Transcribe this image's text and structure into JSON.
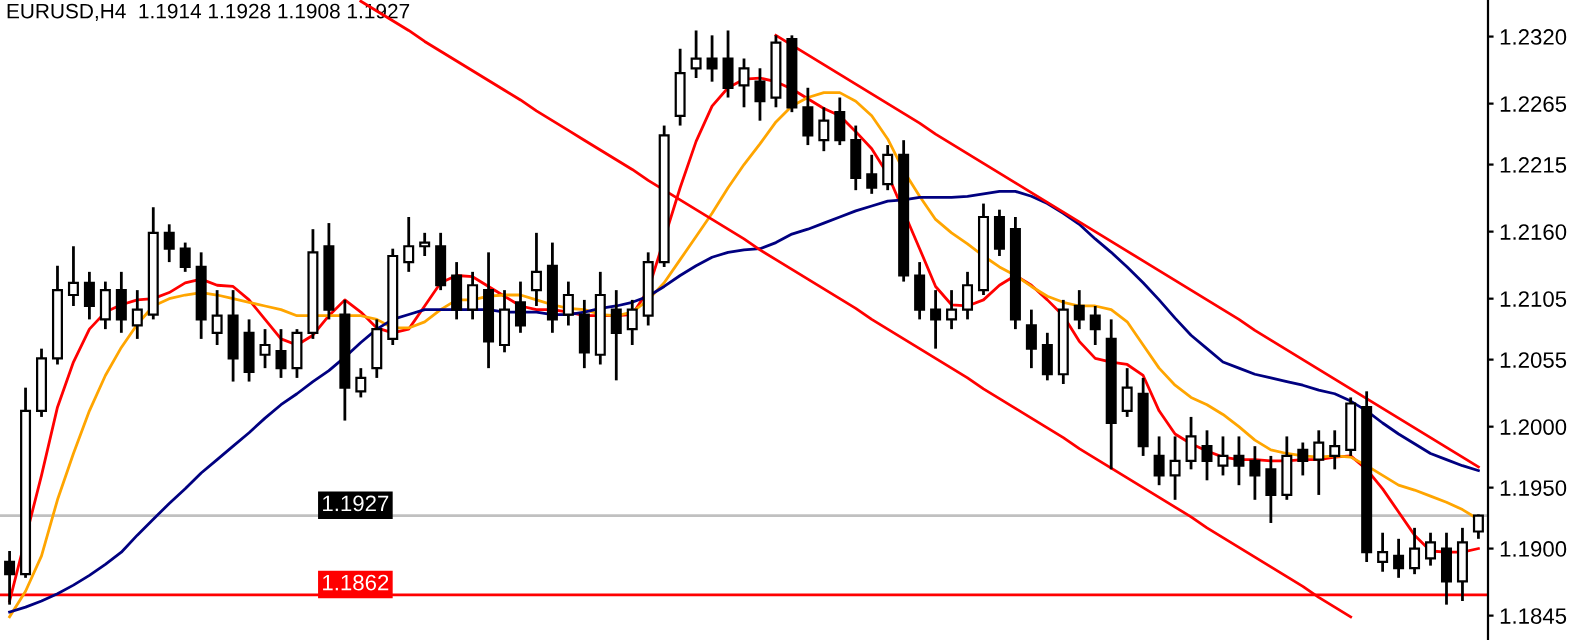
{
  "chart_data": {
    "type": "candlestick",
    "title": "EURUSD,H4  1.1914 1.1928 1.1908 1.1927",
    "categories": [
      null,
      null,
      null,
      null,
      null,
      null,
      null,
      null,
      null,
      null,
      null,
      null,
      null,
      null,
      null,
      null,
      null,
      null,
      null,
      null,
      null,
      null,
      null,
      null,
      null,
      null,
      null,
      null,
      null,
      null,
      null,
      null,
      null,
      null,
      null,
      null,
      null,
      null,
      null,
      null,
      null,
      null,
      null,
      null,
      null,
      null,
      null,
      null,
      null,
      null,
      null,
      null,
      null,
      null,
      null,
      null,
      null,
      null,
      null,
      null,
      null,
      null,
      null,
      null,
      null,
      null,
      null,
      null,
      null,
      null,
      null,
      null,
      null,
      null,
      null,
      null,
      null,
      null,
      null,
      null,
      null,
      null,
      null,
      null,
      null,
      null,
      null,
      null,
      null,
      null,
      null,
      null,
      null
    ],
    "color": "#000000",
    "ohlc": [
      [
        1.1889,
        1.1898,
        1.1854,
        1.1879
      ],
      [
        1.1879,
        1.2032,
        1.1876,
        1.2013
      ],
      [
        1.2013,
        1.2064,
        1.2008,
        1.2056
      ],
      [
        1.2056,
        1.2132,
        1.2051,
        1.2112
      ],
      [
        1.2108,
        1.2148,
        1.2099,
        1.2118
      ],
      [
        1.2118,
        1.2127,
        1.2088,
        1.2099
      ],
      [
        1.2088,
        1.2119,
        1.208,
        1.2112
      ],
      [
        1.2112,
        1.2127,
        1.2077,
        1.2088
      ],
      [
        1.2083,
        1.2112,
        1.2072,
        1.2096
      ],
      [
        1.2092,
        1.218,
        1.2088,
        1.2159
      ],
      [
        1.2159,
        1.2166,
        1.2135,
        1.2146
      ],
      [
        1.2146,
        1.2151,
        1.2127,
        1.2131
      ],
      [
        1.2131,
        1.2143,
        1.2072,
        1.2088
      ],
      [
        1.2077,
        1.2112,
        1.2067,
        1.2091
      ],
      [
        1.2091,
        1.2112,
        1.2037,
        1.2056
      ],
      [
        1.2077,
        1.2088,
        1.2037,
        1.2045
      ],
      [
        1.2059,
        1.208,
        1.2048,
        1.2067
      ],
      [
        1.2062,
        1.208,
        1.204,
        1.2048
      ],
      [
        1.2048,
        1.208,
        1.204,
        1.2077
      ],
      [
        1.2077,
        1.2162,
        1.2072,
        1.2143
      ],
      [
        1.2148,
        1.2167,
        1.2088,
        1.2096
      ],
      [
        1.2092,
        1.2104,
        1.2005,
        1.2032
      ],
      [
        1.2029,
        1.2048,
        1.2024,
        1.204
      ],
      [
        1.2048,
        1.2088,
        1.204,
        1.208
      ],
      [
        1.2072,
        1.2146,
        1.2067,
        1.214
      ],
      [
        1.2135,
        1.2172,
        1.2127,
        1.2148
      ],
      [
        1.2148,
        1.2159,
        1.214,
        1.2151
      ],
      [
        1.2148,
        1.2159,
        1.2112,
        1.2116
      ],
      [
        1.2124,
        1.2135,
        1.2088,
        1.2096
      ],
      [
        1.2096,
        1.2127,
        1.2088,
        1.2116
      ],
      [
        1.2112,
        1.2143,
        1.2048,
        1.207
      ],
      [
        1.2067,
        1.2112,
        1.2061,
        1.2096
      ],
      [
        1.2102,
        1.2119,
        1.2077,
        1.2083
      ],
      [
        1.2112,
        1.2159,
        1.2099,
        1.2127
      ],
      [
        1.2132,
        1.2151,
        1.2077,
        1.2088
      ],
      [
        1.2092,
        1.2119,
        1.2083,
        1.2108
      ],
      [
        1.2092,
        1.2104,
        1.2048,
        1.2061
      ],
      [
        1.2059,
        1.2127,
        1.2051,
        1.2108
      ],
      [
        1.2096,
        1.2112,
        1.2038,
        1.2077
      ],
      [
        1.208,
        1.2104,
        1.2067,
        1.2096
      ],
      [
        1.2091,
        1.2143,
        1.2083,
        1.2135
      ],
      [
        1.2135,
        1.2247,
        1.2131,
        1.2239
      ],
      [
        1.2255,
        1.231,
        1.2247,
        1.229
      ],
      [
        1.2294,
        1.2325,
        1.2286,
        1.2302
      ],
      [
        1.2302,
        1.2321,
        1.2283,
        1.2294
      ],
      [
        1.2302,
        1.2325,
        1.227,
        1.2278
      ],
      [
        1.228,
        1.2302,
        1.2262,
        1.2294
      ],
      [
        1.2283,
        1.2294,
        1.2251,
        1.2267
      ],
      [
        1.227,
        1.2321,
        1.2262,
        1.2315
      ],
      [
        1.2318,
        1.2321,
        1.2258,
        1.2262
      ],
      [
        1.2262,
        1.2278,
        1.2231,
        1.2239
      ],
      [
        1.2235,
        1.2262,
        1.2226,
        1.2251
      ],
      [
        1.2258,
        1.227,
        1.2231,
        1.2235
      ],
      [
        1.2235,
        1.2247,
        1.2194,
        1.2204
      ],
      [
        1.2207,
        1.2223,
        1.2191,
        1.2196
      ],
      [
        1.2199,
        1.2231,
        1.2194,
        1.2223
      ],
      [
        1.2223,
        1.2235,
        1.2119,
        1.2124
      ],
      [
        1.2124,
        1.2135,
        1.2088,
        1.2096
      ],
      [
        1.2096,
        1.2112,
        1.2064,
        1.2088
      ],
      [
        1.2088,
        1.2112,
        1.208,
        1.2096
      ],
      [
        1.2096,
        1.2127,
        1.2088,
        1.2116
      ],
      [
        1.2112,
        1.2183,
        1.2108,
        1.2172
      ],
      [
        1.2172,
        1.2178,
        1.214,
        1.2146
      ],
      [
        1.2162,
        1.2172,
        1.208,
        1.2088
      ],
      [
        1.2083,
        1.2096,
        1.2048,
        1.2064
      ],
      [
        1.2067,
        1.2077,
        1.2038,
        1.2043
      ],
      [
        1.2043,
        1.2104,
        1.2035,
        1.2096
      ],
      [
        1.2099,
        1.2112,
        1.208,
        1.2088
      ],
      [
        1.2091,
        1.2099,
        1.2067,
        1.208
      ],
      [
        1.2072,
        1.2088,
        1.1965,
        1.2003
      ],
      [
        1.2013,
        1.2048,
        1.2008,
        1.2032
      ],
      [
        1.2027,
        1.204,
        1.1976,
        1.1984
      ],
      [
        1.1976,
        1.1992,
        1.1952,
        1.196
      ],
      [
        1.196,
        1.1992,
        1.194,
        1.1972
      ],
      [
        1.1972,
        1.2008,
        1.1965,
        1.1992
      ],
      [
        1.1984,
        1.1997,
        1.1956,
        1.1972
      ],
      [
        1.1968,
        1.1992,
        1.196,
        1.1976
      ],
      [
        1.1976,
        1.1992,
        1.1952,
        1.1968
      ],
      [
        1.1972,
        1.1984,
        1.194,
        1.196
      ],
      [
        1.1965,
        1.1976,
        1.1921,
        1.1944
      ],
      [
        1.1944,
        1.1992,
        1.194,
        1.1976
      ],
      [
        1.1981,
        1.1987,
        1.196,
        1.1972
      ],
      [
        1.1973,
        1.1997,
        1.1944,
        1.1987
      ],
      [
        1.1976,
        1.1997,
        1.1965,
        1.1984
      ],
      [
        1.1981,
        1.2024,
        1.1976,
        1.2019
      ],
      [
        1.2016,
        1.2029,
        1.1889,
        1.1897
      ],
      [
        1.1889,
        1.1913,
        1.1881,
        1.1897
      ],
      [
        1.1894,
        1.1908,
        1.1876,
        1.1884
      ],
      [
        1.1884,
        1.1917,
        1.1879,
        1.19
      ],
      [
        1.1892,
        1.1913,
        1.1886,
        1.1905
      ],
      [
        1.19,
        1.1913,
        1.1854,
        1.1873
      ],
      [
        1.1873,
        1.1917,
        1.1857,
        1.1905
      ],
      [
        1.1914,
        1.1928,
        1.1908,
        1.1927
      ]
    ],
    "series": [
      {
        "type": "line",
        "color": "#ff0000",
        "values": [
          1.1857,
          null,
          1.196,
          1.2016,
          1.2053,
          1.208,
          1.2094,
          1.21,
          1.2104,
          1.2105,
          1.211,
          1.2118,
          1.2121,
          1.2116,
          1.2115,
          1.2104,
          1.2088,
          1.2072,
          1.2067,
          1.2075,
          1.2091,
          1.2104,
          1.2094,
          1.2081,
          1.2077,
          1.208,
          1.2099,
          1.2118,
          1.2124,
          1.2123,
          1.2115,
          1.2107,
          1.2099,
          1.2096,
          1.2096,
          1.2094,
          1.2091,
          1.2091,
          1.2091,
          1.2092,
          1.2112,
          null,
          1.2196,
          1.2234,
          1.2263,
          1.2278,
          1.2285,
          1.2286,
          1.2283,
          1.2277,
          1.2269,
          1.2261,
          1.2255,
          1.2242,
          1.2228,
          1.2207,
          null,
          1.2146,
          1.2115,
          1.21,
          1.2099,
          1.2104,
          1.2116,
          1.2124,
          1.2116,
          1.2104,
          1.2091,
          1.207,
          1.2056,
          1.2053,
          1.2051,
          1.2042,
          1.2013,
          1.1994,
          1.1986,
          1.198,
          1.1975,
          1.1973,
          1.1973,
          1.1972,
          1.1972,
          1.1973,
          1.1973,
          1.1975,
          1.1976,
          1.1965,
          1.1949,
          1.193,
          1.1911,
          1.1898,
          1.1897,
          1.1897,
          1.19
        ]
      },
      {
        "type": "line",
        "color": "#ffa500",
        "values": [
          1.1844,
          1.1865,
          1.1894,
          1.194,
          1.1978,
          1.2013,
          1.2042,
          1.2065,
          1.2084,
          1.2099,
          1.2105,
          1.2108,
          1.211,
          1.2108,
          1.2105,
          1.2102,
          1.2099,
          1.2096,
          1.2091,
          1.2091,
          1.2091,
          1.2091,
          1.2091,
          1.2088,
          1.2081,
          1.2081,
          1.2086,
          1.2096,
          1.2104,
          1.2104,
          1.2107,
          1.2108,
          1.2108,
          1.2104,
          1.21,
          1.2097,
          1.2096,
          1.2092,
          1.2091,
          1.2094,
          1.2104,
          1.2118,
          1.2137,
          1.2156,
          1.2175,
          1.2196,
          1.2215,
          1.2232,
          1.225,
          1.2263,
          1.227,
          1.2274,
          1.2274,
          1.2267,
          1.2255,
          1.2236,
          1.221,
          1.2189,
          1.217,
          1.2159,
          1.215,
          1.214,
          1.2131,
          1.2124,
          1.2115,
          1.2107,
          1.2102,
          1.2099,
          1.2099,
          1.2096,
          1.2086,
          1.2067,
          1.2048,
          1.2034,
          1.2024,
          1.2018,
          1.201,
          1.2,
          1.1989,
          1.1981,
          1.1978,
          1.1976,
          1.1975,
          1.1976,
          1.1975,
          1.1968,
          1.196,
          1.1952,
          1.1948,
          1.1943,
          1.1938,
          1.1932,
          1.1924
        ]
      },
      {
        "type": "line",
        "color": "#000080",
        "values": [
          1.1848,
          1.1852,
          1.1857,
          1.1863,
          1.187,
          1.1878,
          1.1887,
          1.1897,
          1.1911,
          1.1924,
          1.1937,
          1.1949,
          1.1962,
          1.1973,
          1.1984,
          1.1995,
          1.2007,
          1.2018,
          1.2027,
          1.2037,
          1.2046,
          1.2057,
          1.2069,
          1.208,
          1.2088,
          1.2092,
          1.2096,
          1.2096,
          1.2096,
          1.2096,
          1.2096,
          1.2094,
          1.2094,
          1.2094,
          1.2092,
          1.2092,
          1.2094,
          1.2097,
          1.2099,
          1.2102,
          1.2107,
          1.2115,
          1.2124,
          1.2132,
          1.2139,
          1.2143,
          1.2145,
          1.2146,
          1.2151,
          1.2158,
          1.2162,
          1.2167,
          1.2172,
          1.2177,
          1.2181,
          1.2185,
          1.2186,
          1.2188,
          1.2188,
          1.2188,
          1.2189,
          1.2191,
          1.2193,
          1.2193,
          1.2189,
          1.2183,
          1.2175,
          1.2166,
          1.2154,
          1.2143,
          1.2131,
          1.2118,
          1.2104,
          1.2089,
          1.2075,
          1.2064,
          1.2053,
          1.2048,
          1.2043,
          1.204,
          1.2037,
          1.2034,
          1.203,
          1.2027,
          1.2021,
          1.2013,
          1.2003,
          1.1994,
          1.1986,
          1.1978,
          1.1973,
          1.1968,
          1.1964
        ]
      },
      {
        "type": "line",
        "color": "#ff0000",
        "values": [
          null,
          null,
          null,
          null,
          null,
          null,
          null,
          null,
          null,
          null,
          null,
          null,
          null,
          null,
          null,
          null,
          null,
          null,
          null,
          null,
          null,
          null,
          1.2349,
          1.2341,
          1.2333,
          1.2325,
          1.2316,
          1.2308,
          1.23,
          1.2292,
          1.2284,
          1.2276,
          1.2268,
          1.2259,
          1.2251,
          1.2243,
          1.2235,
          1.2227,
          1.2219,
          1.2211,
          1.2202,
          1.2194,
          1.2186,
          1.2178,
          1.217,
          1.2162,
          1.2154,
          1.2145,
          1.2137,
          1.2129,
          1.2121,
          1.2113,
          1.2105,
          1.2097,
          1.2088,
          1.208,
          1.2072,
          1.2064,
          1.2056,
          1.2048,
          1.204,
          1.2031,
          1.2023,
          1.2015,
          1.2007,
          1.1999,
          1.1991,
          1.1982,
          1.1974,
          1.1966,
          1.1958,
          1.195,
          1.1942,
          1.1934,
          1.1926,
          1.1917,
          1.1909,
          1.1901,
          1.1893,
          1.1885,
          1.1877,
          1.1869,
          1.186,
          1.1852,
          1.1844,
          null,
          null,
          null,
          null,
          null,
          null,
          null,
          null
        ]
      },
      {
        "type": "line",
        "color": "#ff0000",
        "values": [
          null,
          null,
          null,
          null,
          null,
          null,
          null,
          null,
          null,
          null,
          null,
          null,
          null,
          null,
          null,
          null,
          null,
          null,
          null,
          null,
          null,
          null,
          null,
          null,
          null,
          null,
          null,
          null,
          null,
          null,
          null,
          null,
          null,
          null,
          null,
          null,
          null,
          null,
          null,
          null,
          null,
          null,
          null,
          null,
          null,
          null,
          null,
          null,
          1.2321,
          1.2313,
          1.2305,
          1.2297,
          1.2289,
          1.2281,
          1.2273,
          1.2265,
          1.2257,
          1.2249,
          1.224,
          1.2232,
          1.2224,
          1.2216,
          1.2208,
          1.22,
          1.2192,
          1.2184,
          1.2176,
          1.2168,
          1.216,
          1.2152,
          1.2144,
          1.2136,
          1.2128,
          1.212,
          1.2112,
          1.2104,
          1.2096,
          1.2088,
          1.2079,
          1.2071,
          1.2063,
          1.2055,
          1.2047,
          1.2039,
          1.2031,
          1.2023,
          1.2015,
          1.2007,
          1.1999,
          1.1991,
          1.1983,
          1.1975,
          1.1967
        ]
      }
    ],
    "ylim": [
      1.1825,
      1.235
    ],
    "yticks": [
      {
        "value": 1.232,
        "label": "1.2320"
      },
      1.2265,
      1.2215,
      {
        "value": 1.216,
        "label": "1.2160"
      },
      1.2105,
      1.2055,
      {
        "value": 1.2,
        "label": "1.2000"
      },
      {
        "value": 1.195,
        "label": "1.1950"
      },
      {
        "value": 1.19,
        "label": "1.1900"
      },
      1.1845
    ],
    "tick_labels": "y",
    "ref_lines": [
      {
        "axis": "y",
        "value": 1.1927,
        "label": "1.1927",
        "color": "#c0c0c0"
      },
      {
        "axis": "y",
        "value": 1.1862,
        "label": "1.1862",
        "color": "#ff0000"
      }
    ]
  }
}
